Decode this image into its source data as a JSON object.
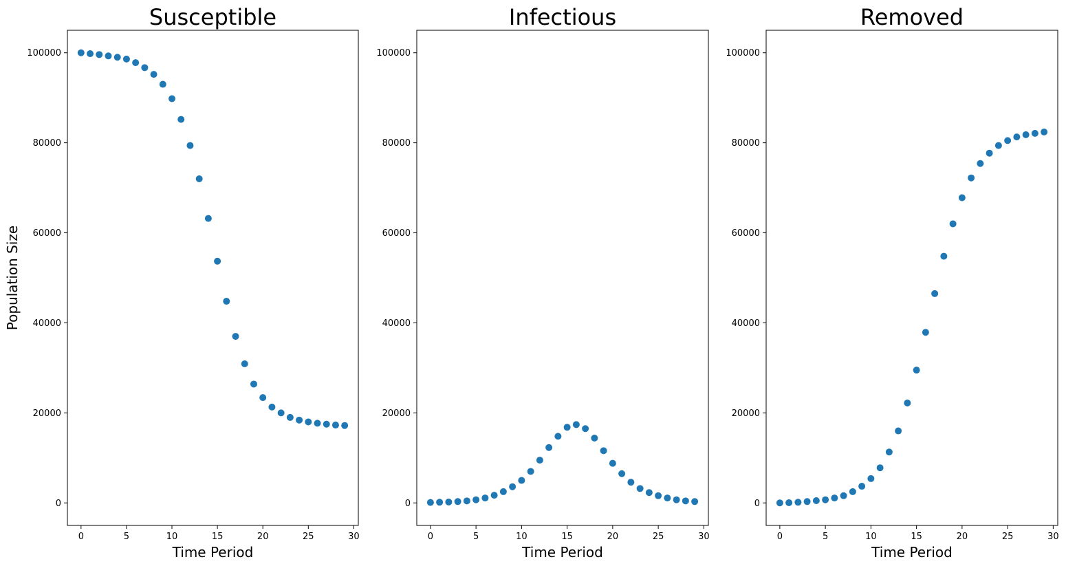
{
  "figure": {
    "ylabel": "Population Size",
    "marker_color": "#1f77b4"
  },
  "chart_data": [
    {
      "type": "scatter",
      "title": "Susceptible",
      "xlabel": "Time Period",
      "ylabel": "Population Size",
      "xlim": [
        -1.5,
        30.5
      ],
      "ylim": [
        -5000,
        105000
      ],
      "xticks": [
        0,
        5,
        10,
        15,
        20,
        25,
        30
      ],
      "yticks": [
        0,
        20000,
        40000,
        60000,
        80000,
        100000
      ],
      "grid": false,
      "x": [
        0,
        1,
        2,
        3,
        4,
        5,
        6,
        7,
        8,
        9,
        10,
        11,
        12,
        13,
        14,
        15,
        16,
        17,
        18,
        19,
        20,
        21,
        22,
        23,
        24,
        25,
        26,
        27,
        28,
        29
      ],
      "y": [
        100000,
        99800,
        99600,
        99300,
        99000,
        98600,
        97800,
        96700,
        95200,
        93000,
        89800,
        85200,
        79400,
        72000,
        63200,
        53700,
        44800,
        37000,
        30900,
        26400,
        23400,
        21300,
        20000,
        19000,
        18400,
        18000,
        17700,
        17500,
        17300,
        17200
      ]
    },
    {
      "type": "scatter",
      "title": "Infectious",
      "xlabel": "Time Period",
      "ylabel": "",
      "xlim": [
        -1.5,
        30.5
      ],
      "ylim": [
        -5000,
        105000
      ],
      "xticks": [
        0,
        5,
        10,
        15,
        20,
        25,
        30
      ],
      "yticks": [
        0,
        20000,
        40000,
        60000,
        80000,
        100000
      ],
      "grid": false,
      "x": [
        0,
        1,
        2,
        3,
        4,
        5,
        6,
        7,
        8,
        9,
        10,
        11,
        12,
        13,
        14,
        15,
        16,
        17,
        18,
        19,
        20,
        21,
        22,
        23,
        24,
        25,
        26,
        27,
        28,
        29
      ],
      "y": [
        100,
        150,
        200,
        300,
        450,
        700,
        1100,
        1700,
        2500,
        3600,
        5000,
        7000,
        9500,
        12300,
        14800,
        16800,
        17400,
        16500,
        14400,
        11600,
        8800,
        6500,
        4600,
        3200,
        2300,
        1600,
        1100,
        700,
        450,
        300
      ]
    },
    {
      "type": "scatter",
      "title": "Removed",
      "xlabel": "Time Period",
      "ylabel": "",
      "xlim": [
        -1.5,
        30.5
      ],
      "ylim": [
        -5000,
        105000
      ],
      "xticks": [
        0,
        5,
        10,
        15,
        20,
        25,
        30
      ],
      "yticks": [
        0,
        20000,
        40000,
        60000,
        80000,
        100000
      ],
      "grid": false,
      "x": [
        0,
        1,
        2,
        3,
        4,
        5,
        6,
        7,
        8,
        9,
        10,
        11,
        12,
        13,
        14,
        15,
        16,
        17,
        18,
        19,
        20,
        21,
        22,
        23,
        24,
        25,
        26,
        27,
        28,
        29
      ],
      "y": [
        0,
        50,
        150,
        300,
        500,
        700,
        1100,
        1600,
        2500,
        3700,
        5400,
        7800,
        11300,
        16000,
        22200,
        29500,
        37900,
        46500,
        54800,
        62000,
        67800,
        72200,
        75400,
        77700,
        79400,
        80500,
        81300,
        81800,
        82100,
        82400
      ]
    }
  ]
}
